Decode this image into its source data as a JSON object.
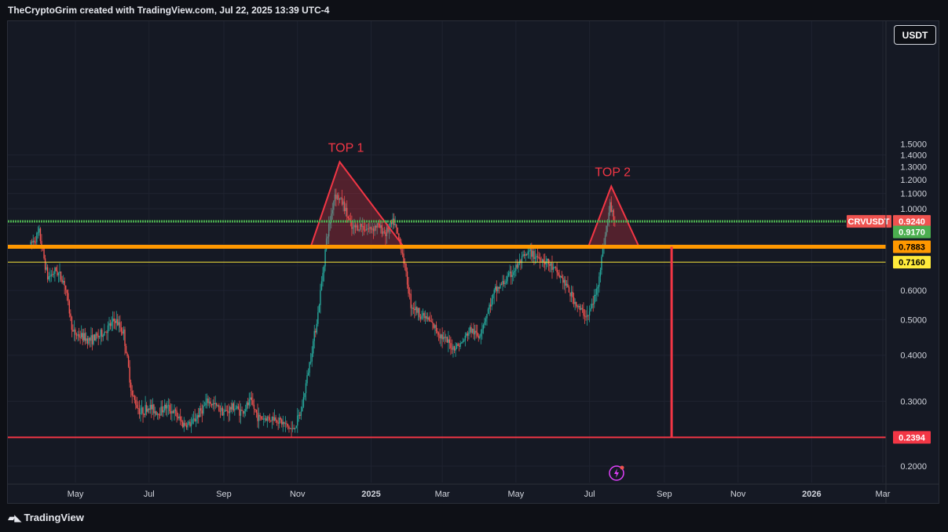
{
  "header": {
    "attribution": "TheCryptoGrim created with TradingView.com, Jul 22, 2025 13:39 UTC-4"
  },
  "toolbar": {
    "currency_label": "USDT"
  },
  "footer": {
    "brand": "TradingView",
    "logo_icon": "tradingview-logo-icon"
  },
  "colors": {
    "background": "#151924",
    "grid": "#1f2330",
    "up": "#26a69a",
    "down": "#ef5350",
    "pattern": "#f23645",
    "orange_level": "#ff9800",
    "green_level": "#4caf50",
    "yellow_level": "#ffeb3b",
    "red_level": "#f23645"
  },
  "chart_data": {
    "type": "candlestick",
    "symbol": "CRVUSDT",
    "y_axis": {
      "scale": "log",
      "ticks": [
        "1.4000",
        "1.3000",
        "1.2000",
        "1.1000",
        "1.0000",
        "0.6000",
        "0.5000",
        "0.4000",
        "0.3000",
        "0.2000"
      ],
      "tick_values": [
        1.4,
        1.3,
        1.2,
        1.1,
        1.0,
        0.6,
        0.5,
        0.4,
        0.3,
        0.2
      ],
      "top_partial_tick": "1.5000"
    },
    "x_axis": {
      "ticks": [
        "May",
        "Jul",
        "Sep",
        "Nov",
        "2025",
        "Mar",
        "May",
        "Jul",
        "Sep",
        "Nov",
        "2026",
        "Mar"
      ],
      "tick_dates": [
        "2024-05-01",
        "2024-07-01",
        "2024-09-01",
        "2024-11-01",
        "2025-01-01",
        "2025-03-01",
        "2025-05-01",
        "2025-07-01",
        "2025-09-01",
        "2025-11-01",
        "2026-01-01",
        "2026-03-01"
      ]
    },
    "price_path": [
      [
        "2024-03-25",
        0.8
      ],
      [
        "2024-04-01",
        0.86
      ],
      [
        "2024-04-08",
        0.65
      ],
      [
        "2024-04-15",
        0.68
      ],
      [
        "2024-04-22",
        0.63
      ],
      [
        "2024-04-29",
        0.46
      ],
      [
        "2024-05-06",
        0.45
      ],
      [
        "2024-05-13",
        0.44
      ],
      [
        "2024-05-20",
        0.45
      ],
      [
        "2024-05-27",
        0.47
      ],
      [
        "2024-06-03",
        0.5
      ],
      [
        "2024-06-10",
        0.46
      ],
      [
        "2024-06-17",
        0.31
      ],
      [
        "2024-06-24",
        0.28
      ],
      [
        "2024-07-01",
        0.29
      ],
      [
        "2024-07-08",
        0.28
      ],
      [
        "2024-07-15",
        0.29
      ],
      [
        "2024-07-22",
        0.28
      ],
      [
        "2024-07-29",
        0.26
      ],
      [
        "2024-08-05",
        0.26
      ],
      [
        "2024-08-12",
        0.28
      ],
      [
        "2024-08-19",
        0.3
      ],
      [
        "2024-08-26",
        0.29
      ],
      [
        "2024-09-02",
        0.28
      ],
      [
        "2024-09-09",
        0.29
      ],
      [
        "2024-09-16",
        0.28
      ],
      [
        "2024-09-23",
        0.3
      ],
      [
        "2024-09-30",
        0.27
      ],
      [
        "2024-10-07",
        0.27
      ],
      [
        "2024-10-14",
        0.27
      ],
      [
        "2024-10-21",
        0.26
      ],
      [
        "2024-10-28",
        0.25
      ],
      [
        "2024-11-04",
        0.28
      ],
      [
        "2024-11-11",
        0.38
      ],
      [
        "2024-11-18",
        0.52
      ],
      [
        "2024-11-25",
        0.82
      ],
      [
        "2024-12-02",
        1.1
      ],
      [
        "2024-12-09",
        1.03
      ],
      [
        "2024-12-16",
        0.88
      ],
      [
        "2024-12-23",
        0.9
      ],
      [
        "2024-12-30",
        0.88
      ],
      [
        "2025-01-06",
        0.9
      ],
      [
        "2025-01-13",
        0.86
      ],
      [
        "2025-01-20",
        0.92
      ],
      [
        "2025-01-27",
        0.76
      ],
      [
        "2025-02-03",
        0.55
      ],
      [
        "2025-02-10",
        0.52
      ],
      [
        "2025-02-17",
        0.5
      ],
      [
        "2025-02-24",
        0.47
      ],
      [
        "2025-03-03",
        0.44
      ],
      [
        "2025-03-10",
        0.42
      ],
      [
        "2025-03-17",
        0.43
      ],
      [
        "2025-03-24",
        0.47
      ],
      [
        "2025-03-31",
        0.45
      ],
      [
        "2025-04-07",
        0.52
      ],
      [
        "2025-04-14",
        0.6
      ],
      [
        "2025-04-21",
        0.63
      ],
      [
        "2025-04-28",
        0.67
      ],
      [
        "2025-05-05",
        0.72
      ],
      [
        "2025-05-12",
        0.76
      ],
      [
        "2025-05-19",
        0.74
      ],
      [
        "2025-05-26",
        0.72
      ],
      [
        "2025-06-02",
        0.68
      ],
      [
        "2025-06-09",
        0.64
      ],
      [
        "2025-06-16",
        0.58
      ],
      [
        "2025-06-23",
        0.53
      ],
      [
        "2025-06-30",
        0.51
      ],
      [
        "2025-07-07",
        0.6
      ],
      [
        "2025-07-14",
        0.85
      ],
      [
        "2025-07-18",
        1.02
      ],
      [
        "2025-07-22",
        0.93
      ]
    ],
    "horizontal_levels": [
      {
        "name": "CRVUSDT",
        "value": 0.924,
        "label": "0.9240",
        "style": "dotted-green",
        "role": "last-price"
      },
      {
        "value": 0.917,
        "label": "0.9170",
        "style": "green",
        "role": "level"
      },
      {
        "value": 0.7883,
        "label": "0.7883",
        "style": "orange-thick",
        "role": "level"
      },
      {
        "value": 0.716,
        "label": "0.7160",
        "style": "yellow",
        "role": "level"
      },
      {
        "value": 0.2394,
        "label": "0.2394",
        "style": "red",
        "role": "level"
      }
    ],
    "vertical_marker": {
      "date": "2025-09-07",
      "from": 0.2394,
      "to": 0.7883
    },
    "annotations": [
      {
        "text": "TOP 1",
        "left_base": [
          "2024-11-12",
          0.7883
        ],
        "apex": [
          "2024-12-06",
          1.34
        ],
        "right_base": [
          "2025-01-28",
          0.7883
        ]
      },
      {
        "text": "TOP 2",
        "left_base": [
          "2025-06-30",
          0.7883
        ],
        "apex": [
          "2025-07-19",
          1.15
        ],
        "right_base": [
          "2025-08-11",
          0.7883
        ]
      }
    ],
    "event_icon": "lightning-icon",
    "grid": true
  }
}
